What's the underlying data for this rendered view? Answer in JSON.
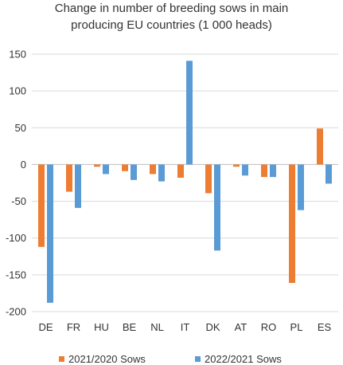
{
  "chart_data": {
    "type": "bar",
    "title_lines": [
      "Change in number of breeding sows in main",
      "producing EU countries (1 000 heads)"
    ],
    "categories": [
      "DE",
      "FR",
      "HU",
      "BE",
      "NL",
      "IT",
      "DK",
      "AT",
      "RO",
      "PL",
      "ES"
    ],
    "series": [
      {
        "name": "2021/2020 Sows",
        "color": "#ED7D31",
        "values": [
          -112,
          -37,
          -3,
          -9,
          -13,
          -18,
          -39,
          -3,
          -17,
          -161,
          49
        ]
      },
      {
        "name": "2022/2021 Sows",
        "color": "#5B9BD5",
        "values": [
          -188,
          -59,
          -13,
          -21,
          -23,
          141,
          -117,
          -15,
          -17,
          -62,
          -26
        ]
      }
    ],
    "yticks": [
      150,
      100,
      50,
      0,
      -50,
      -100,
      -150,
      -200
    ],
    "ylim": [
      -200,
      150
    ],
    "grid": true,
    "legend_position": "bottom"
  }
}
